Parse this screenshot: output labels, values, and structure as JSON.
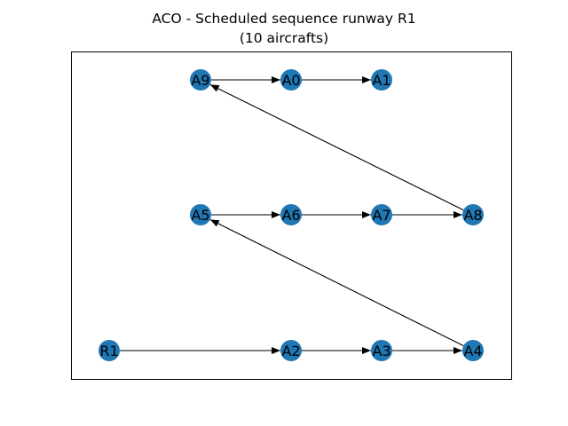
{
  "figure": {
    "title_line1": "ACO - Scheduled sequence runway R1",
    "title_line2": "(10 aircrafts)"
  },
  "graph": {
    "node_color": "#1f77b4",
    "edge_color": "#000000",
    "nodes": [
      {
        "id": "A9",
        "row": 0,
        "col": 1
      },
      {
        "id": "A0",
        "row": 0,
        "col": 2
      },
      {
        "id": "A1",
        "row": 0,
        "col": 3
      },
      {
        "id": "A5",
        "row": 1,
        "col": 1
      },
      {
        "id": "A6",
        "row": 1,
        "col": 2
      },
      {
        "id": "A7",
        "row": 1,
        "col": 3
      },
      {
        "id": "A8",
        "row": 1,
        "col": 4
      },
      {
        "id": "R1",
        "row": 2,
        "col": 0
      },
      {
        "id": "A2",
        "row": 2,
        "col": 2
      },
      {
        "id": "A3",
        "row": 2,
        "col": 3
      },
      {
        "id": "A4",
        "row": 2,
        "col": 4
      }
    ],
    "edges": [
      {
        "from": "R1",
        "to": "A2"
      },
      {
        "from": "A2",
        "to": "A3"
      },
      {
        "from": "A3",
        "to": "A4"
      },
      {
        "from": "A4",
        "to": "A5"
      },
      {
        "from": "A5",
        "to": "A6"
      },
      {
        "from": "A6",
        "to": "A7"
      },
      {
        "from": "A7",
        "to": "A8"
      },
      {
        "from": "A8",
        "to": "A9"
      },
      {
        "from": "A9",
        "to": "A0"
      },
      {
        "from": "A0",
        "to": "A1"
      }
    ]
  }
}
